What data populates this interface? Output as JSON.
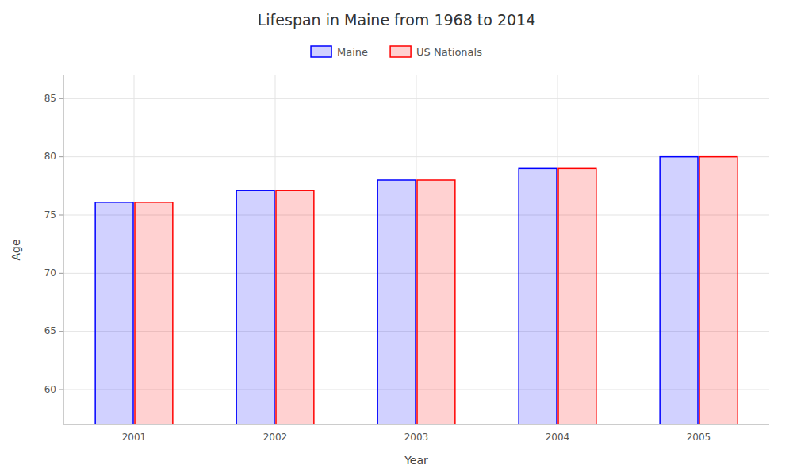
{
  "chart_data": {
    "type": "bar",
    "title": "Lifespan in Maine from 1968 to 2014",
    "x_label": "Year",
    "y_label": "Age",
    "categories": [
      "2001",
      "2002",
      "2003",
      "2004",
      "2005"
    ],
    "series": [
      {
        "name": "Maine",
        "color": "#0000ff",
        "values": [
          76.1,
          77.1,
          78.0,
          79.0,
          80.0
        ]
      },
      {
        "name": "US Nationals",
        "color": "#ff0000",
        "values": [
          76.1,
          77.1,
          78.0,
          79.0,
          80.0
        ]
      }
    ],
    "ylim": [
      57,
      87
    ],
    "yticks": [
      60,
      65,
      70,
      75,
      80,
      85
    ],
    "grid": true,
    "legend": "top"
  }
}
